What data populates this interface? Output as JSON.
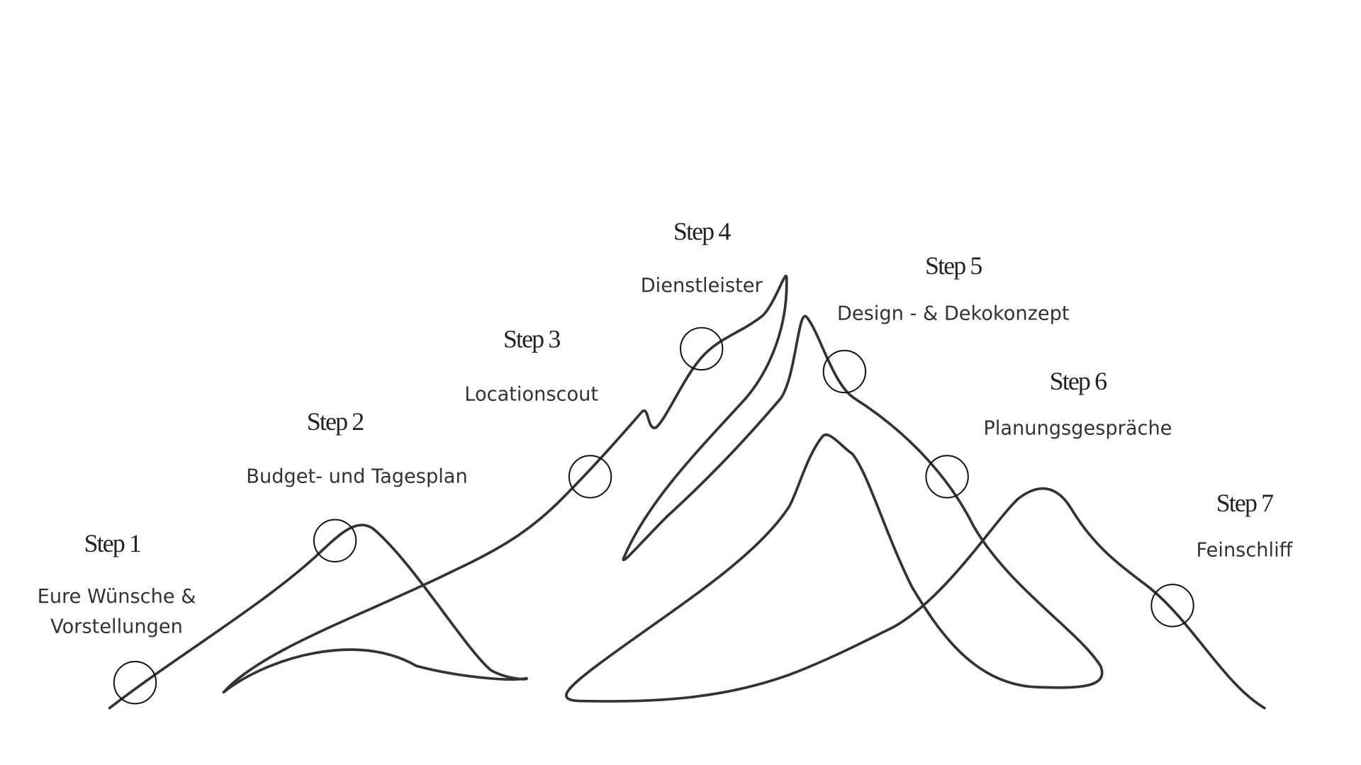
{
  "steps": [
    {
      "title": "Step 1",
      "label": [
        "Eure Wünsche &",
        "Vorstellungen"
      ]
    },
    {
      "title": "Step 2",
      "label": [
        "Budget- und Tagesplan"
      ]
    },
    {
      "title": "Step 3",
      "label": [
        "Locationscout"
      ]
    },
    {
      "title": "Step 4",
      "label": [
        "Dienstleister"
      ]
    },
    {
      "title": "Step 5",
      "label": [
        "Design - & Dekokonzept"
      ]
    },
    {
      "title": "Step 6",
      "label": [
        "Planungsgespräche"
      ]
    },
    {
      "title": "Step 7",
      "label": [
        "Feinschliff"
      ]
    }
  ]
}
